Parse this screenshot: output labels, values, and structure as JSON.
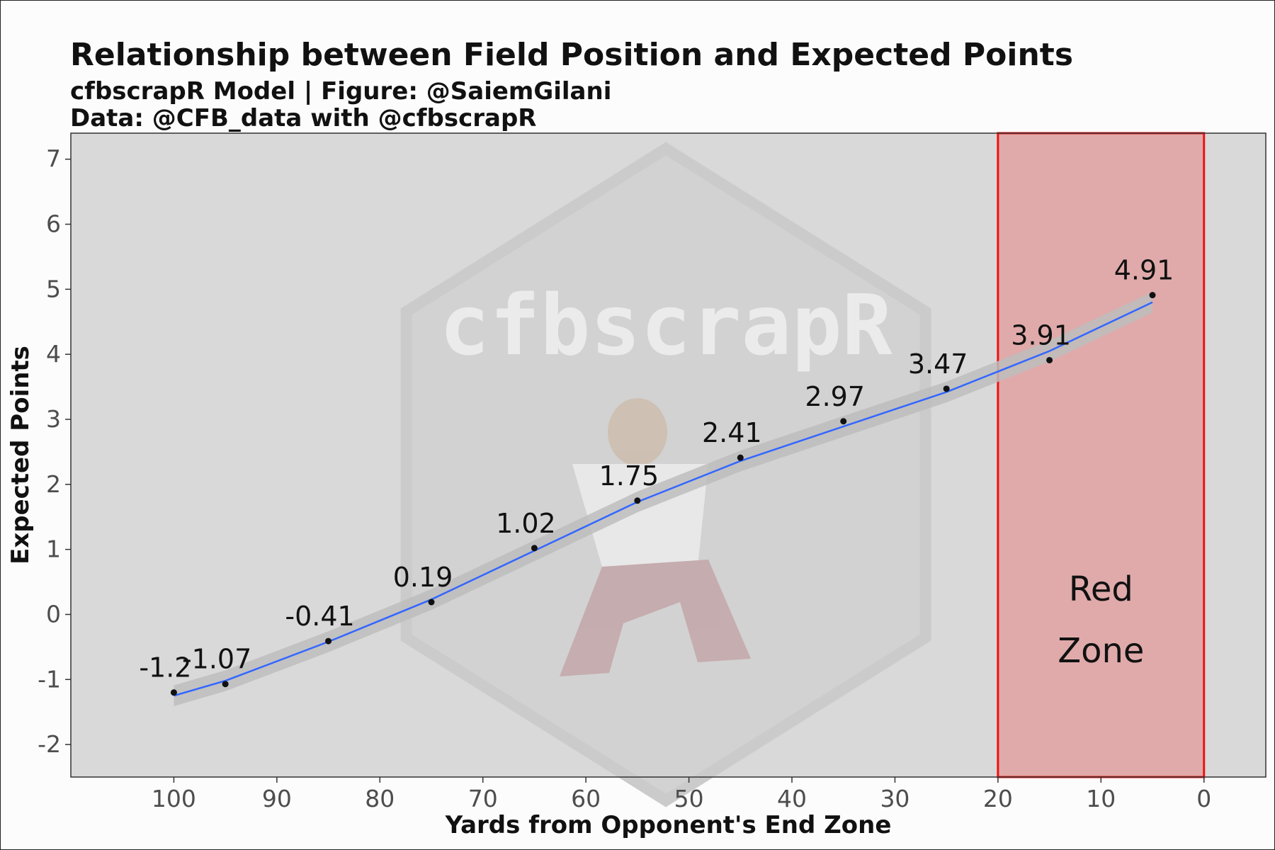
{
  "chart_data": {
    "type": "line",
    "title": "Relationship between Field Position and Expected Points",
    "subtitle_lines": [
      "cfbscrapR Model | Figure: @SaiemGilani",
      "Data: @CFB_data with @cfbscrapR"
    ],
    "xlabel": "Yards from Opponent's End Zone",
    "ylabel": "Expected Points",
    "x_reversed": true,
    "xlim": [
      110,
      -6
    ],
    "ylim": [
      -2.5,
      7.4
    ],
    "x_ticks": [
      100,
      90,
      80,
      70,
      60,
      50,
      40,
      30,
      20,
      10,
      0
    ],
    "x_tick_labels": [
      "100",
      "90",
      "80",
      "70",
      "60",
      "50",
      "40",
      "30",
      "20",
      "10",
      "0"
    ],
    "y_ticks": [
      -2,
      -1,
      0,
      1,
      2,
      3,
      4,
      5,
      6,
      7
    ],
    "y_tick_labels": [
      "-2",
      "-1",
      "0",
      "1",
      "2",
      "3",
      "4",
      "5",
      "6",
      "7"
    ],
    "grid": false,
    "points": {
      "x": [
        100,
        95,
        85,
        75,
        65,
        55,
        45,
        35,
        25,
        15,
        5
      ],
      "y": [
        -1.2,
        -1.07,
        -0.41,
        0.19,
        1.02,
        1.75,
        2.41,
        2.97,
        3.47,
        3.91,
        4.91
      ],
      "labels": [
        "-1.2",
        "-1.07",
        "-0.41",
        "0.19",
        "1.02",
        "1.75",
        "2.41",
        "2.97",
        "3.47",
        "3.91",
        "4.91"
      ]
    },
    "smooth_line": {
      "x": [
        100,
        95,
        85,
        75,
        65,
        55,
        45,
        35,
        25,
        15,
        5
      ],
      "y": [
        -1.25,
        -1.02,
        -0.42,
        0.23,
        0.98,
        1.73,
        2.36,
        2.89,
        3.42,
        4.05,
        4.8
      ],
      "band_halfwidth": 0.16
    },
    "annotation": {
      "text_lines": [
        "Red",
        "Zone"
      ],
      "x_range": [
        20,
        0
      ],
      "fill": "#e0aaaa",
      "stroke": "#ee1111"
    },
    "watermark": "cfbscrapR",
    "colors": {
      "panel": "#d9d9d9",
      "line": "#3366ff",
      "band": "#bdbdbd",
      "point": "#111111"
    }
  }
}
